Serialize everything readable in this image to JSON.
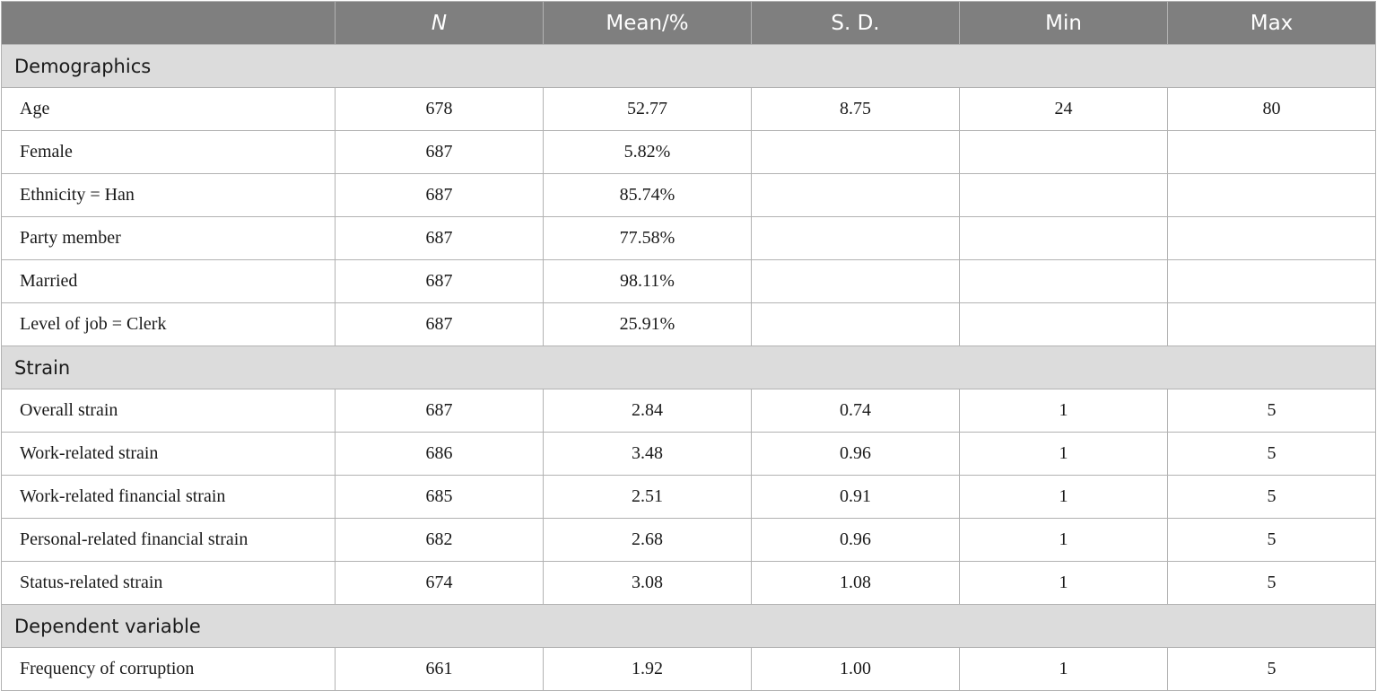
{
  "header": [
    "",
    "N",
    "Mean/%",
    "S. D.",
    "Min",
    "Max"
  ],
  "sections": [
    {
      "title": "Demographics",
      "rows": [
        [
          "Age",
          "678",
          "52.77",
          "8.75",
          "24",
          "80"
        ],
        [
          "Female",
          "687",
          "5.82%",
          "",
          "",
          ""
        ],
        [
          "Ethnicity = Han",
          "687",
          "85.74%",
          "",
          "",
          ""
        ],
        [
          "Party member",
          "687",
          "77.58%",
          "",
          "",
          ""
        ],
        [
          "Married",
          "687",
          "98.11%",
          "",
          "",
          ""
        ],
        [
          "Level of job = Clerk",
          "687",
          "25.91%",
          "",
          "",
          ""
        ]
      ]
    },
    {
      "title": "Strain",
      "rows": [
        [
          "Overall strain",
          "687",
          "2.84",
          "0.74",
          "1",
          "5"
        ],
        [
          "Work-related strain",
          "686",
          "3.48",
          "0.96",
          "1",
          "5"
        ],
        [
          "Work-related financial strain",
          "685",
          "2.51",
          "0.91",
          "1",
          "5"
        ],
        [
          "Personal-related financial strain",
          "682",
          "2.68",
          "0.96",
          "1",
          "5"
        ],
        [
          "Status-related strain",
          "674",
          "3.08",
          "1.08",
          "1",
          "5"
        ]
      ]
    },
    {
      "title": "Dependent variable",
      "rows": [
        [
          "Frequency of corruption",
          "661",
          "1.92",
          "1.00",
          "1",
          "5"
        ]
      ]
    }
  ],
  "colors": {
    "header_bg": "#7f7f7f",
    "header_text": "#ffffff",
    "section_bg": "#dcdcdc",
    "border": "#b2b2b2"
  }
}
